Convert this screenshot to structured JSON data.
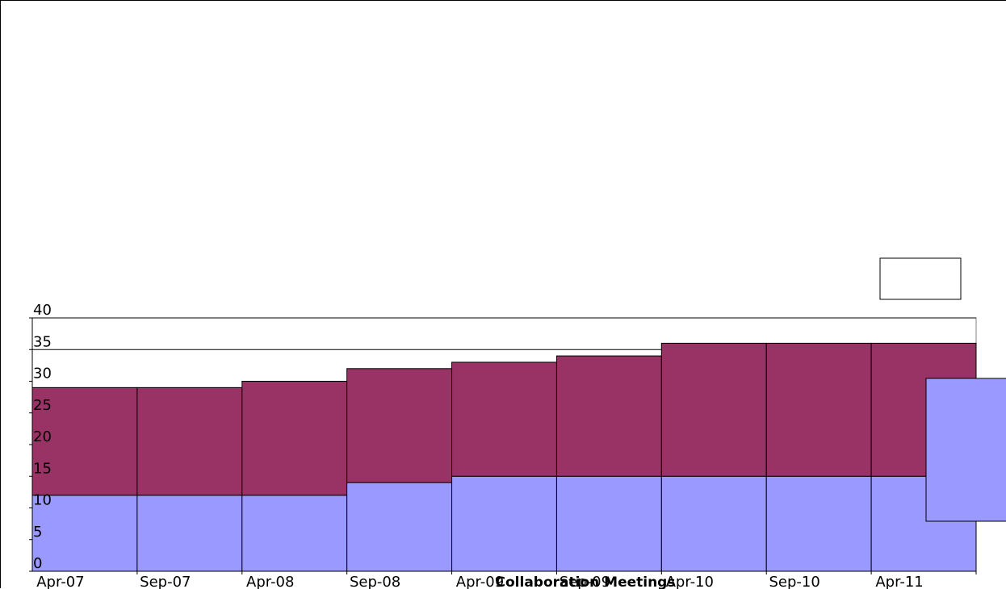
{
  "chart_data": {
    "type": "bar",
    "stacked": true,
    "title": "",
    "xlabel": "Collaboration Meetings",
    "ylabel": "",
    "categories": [
      "Apr-07",
      "Sep-07",
      "Apr-08",
      "Sep-08",
      "Apr-09",
      "Sep-09",
      "Apr-10",
      "Sep-10",
      "Apr-11"
    ],
    "series": [
      {
        "values": [
          12,
          12,
          12,
          14,
          15,
          15,
          15,
          15,
          15
        ],
        "color": "#9999ff"
      },
      {
        "values": [
          17,
          17,
          18,
          18,
          18,
          19,
          21,
          21,
          21
        ],
        "color": "#993366"
      }
    ],
    "ylim": [
      0,
      40
    ],
    "yticks": [
      0,
      5,
      10,
      15,
      20,
      25,
      30,
      35,
      40
    ],
    "xticks": [
      "Apr-07",
      "Sep-07",
      "Apr-08",
      "Sep-08",
      "Apr-09",
      "Sep-09",
      "Apr-10",
      "Sep-10",
      "Apr-11"
    ],
    "grid": "horizontal at 35 and 40",
    "legend": "right"
  }
}
